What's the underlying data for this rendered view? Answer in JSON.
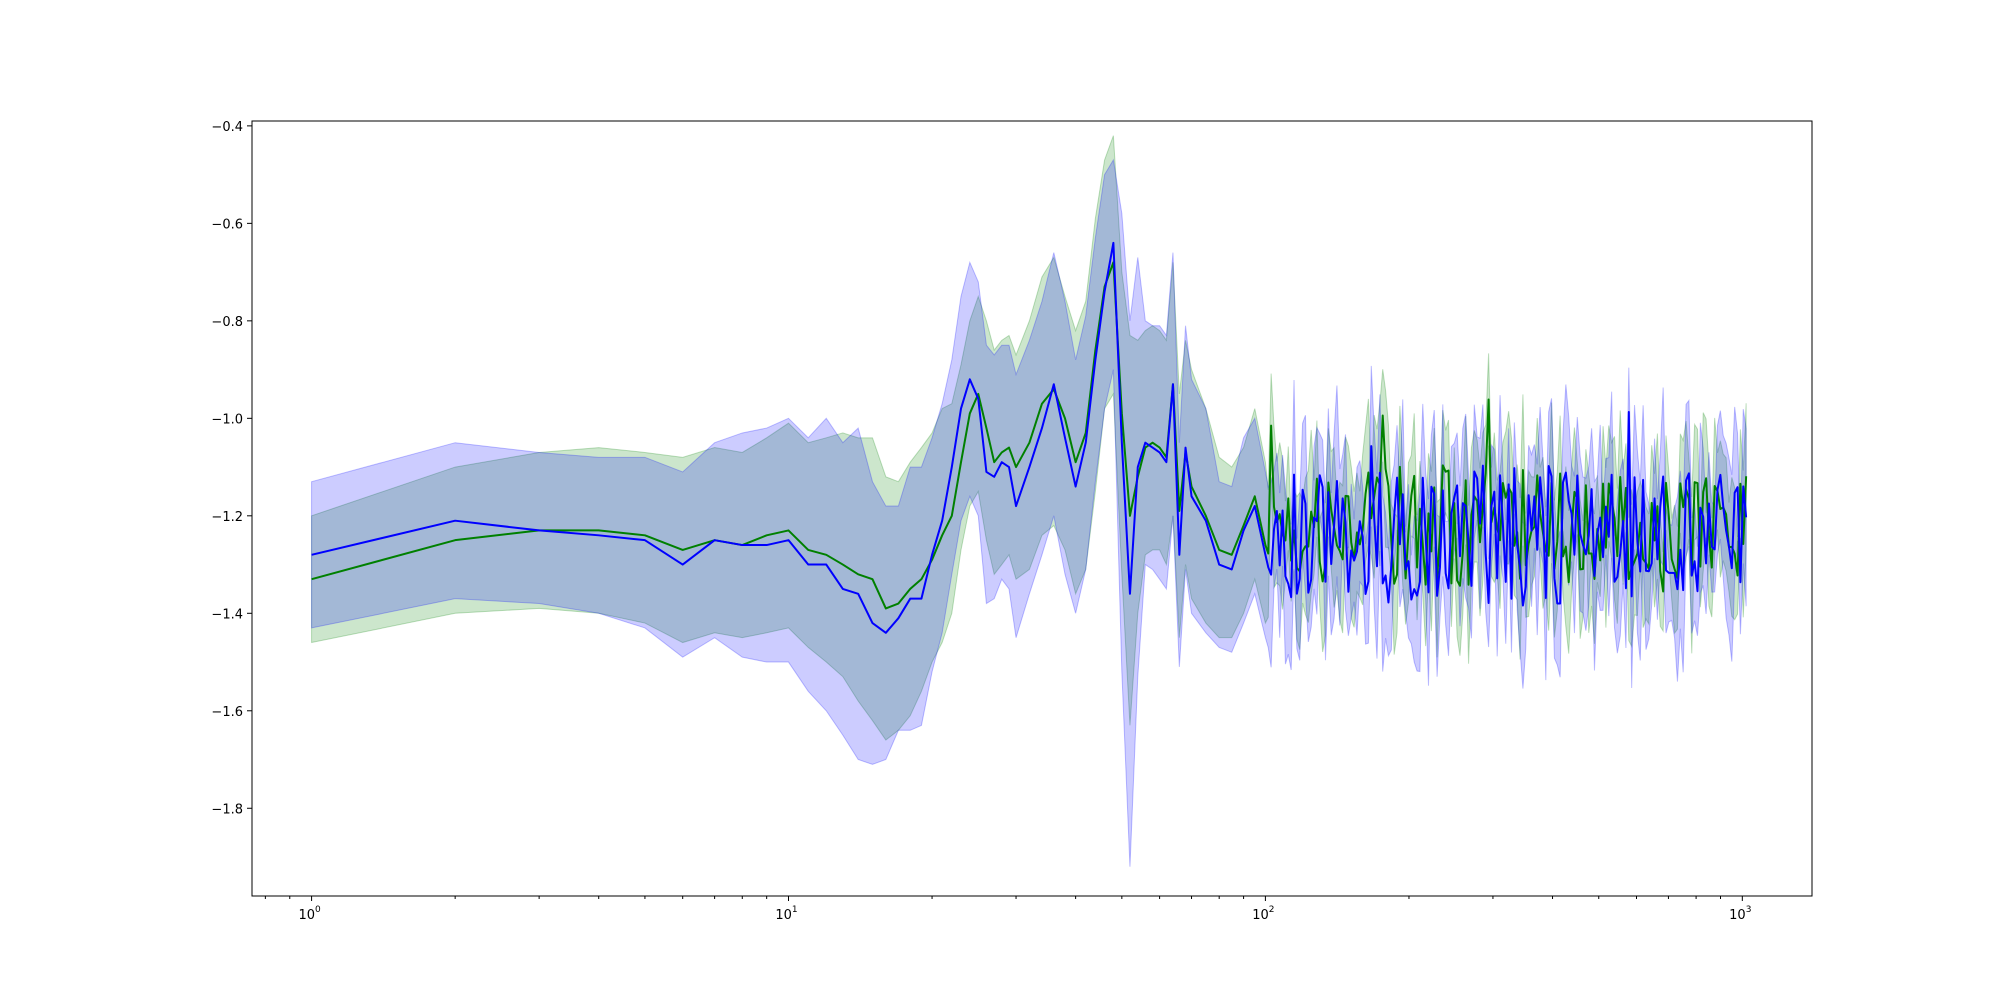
{
  "chart_data": {
    "type": "line",
    "title": "",
    "xlabel": "",
    "ylabel": "",
    "x_scale": "log",
    "xlim": [
      0.75,
      1400
    ],
    "ylim": [
      -1.98,
      -0.39
    ],
    "grid": false,
    "legend": "none",
    "x_ticks": [
      {
        "base": "10",
        "exp": "0",
        "value": 1
      },
      {
        "base": "10",
        "exp": "1",
        "value": 10
      },
      {
        "base": "10",
        "exp": "2",
        "value": 100
      },
      {
        "base": "10",
        "exp": "3",
        "value": 1000
      }
    ],
    "y_ticks": [
      {
        "label": "−0.4",
        "value": -0.4
      },
      {
        "label": "−0.6",
        "value": -0.6
      },
      {
        "label": "−0.8",
        "value": -0.8
      },
      {
        "label": "−1.0",
        "value": -1.0
      },
      {
        "label": "−1.2",
        "value": -1.2
      },
      {
        "label": "−1.4",
        "value": -1.4
      },
      {
        "label": "−1.6",
        "value": -1.6
      },
      {
        "label": "−1.8",
        "value": -1.8
      }
    ],
    "series": [
      {
        "color": "#008000",
        "band_color": "#008000",
        "band_opacity": 0.2,
        "x": [
          1,
          2,
          3,
          4,
          5,
          6,
          7,
          8,
          9,
          10,
          11,
          12,
          13,
          14,
          15,
          16,
          17,
          18,
          19,
          20,
          21,
          22,
          23,
          24,
          25,
          26,
          27,
          28,
          29,
          30,
          32,
          34,
          36,
          38,
          40,
          42,
          44,
          46,
          48,
          50,
          52,
          54,
          56,
          58,
          60,
          62,
          64,
          66,
          68,
          70,
          75,
          80,
          85,
          90,
          95,
          100
        ],
        "mean": [
          -1.33,
          -1.25,
          -1.23,
          -1.23,
          -1.24,
          -1.27,
          -1.25,
          -1.26,
          -1.24,
          -1.23,
          -1.27,
          -1.28,
          -1.3,
          -1.32,
          -1.33,
          -1.39,
          -1.38,
          -1.35,
          -1.33,
          -1.29,
          -1.24,
          -1.2,
          -1.09,
          -0.99,
          -0.95,
          -1.02,
          -1.09,
          -1.07,
          -1.06,
          -1.1,
          -1.05,
          -0.97,
          -0.94,
          -1.0,
          -1.09,
          -1.03,
          -0.86,
          -0.73,
          -0.68,
          -0.99,
          -1.2,
          -1.12,
          -1.06,
          -1.05,
          -1.06,
          -1.08,
          -0.93,
          -1.19,
          -1.07,
          -1.14,
          -1.2,
          -1.27,
          -1.28,
          -1.22,
          -1.16,
          -1.26
        ],
        "lower": [
          -1.46,
          -1.4,
          -1.39,
          -1.4,
          -1.42,
          -1.46,
          -1.44,
          -1.45,
          -1.44,
          -1.43,
          -1.47,
          -1.5,
          -1.53,
          -1.58,
          -1.62,
          -1.66,
          -1.64,
          -1.61,
          -1.56,
          -1.5,
          -1.46,
          -1.4,
          -1.27,
          -1.18,
          -1.15,
          -1.25,
          -1.32,
          -1.3,
          -1.28,
          -1.33,
          -1.31,
          -1.24,
          -1.22,
          -1.27,
          -1.36,
          -1.31,
          -1.15,
          -0.98,
          -0.95,
          -1.32,
          -1.63,
          -1.4,
          -1.28,
          -1.27,
          -1.27,
          -1.3,
          -1.2,
          -1.45,
          -1.3,
          -1.37,
          -1.42,
          -1.45,
          -1.45,
          -1.4,
          -1.33,
          -1.42
        ],
        "upper": [
          -1.2,
          -1.1,
          -1.07,
          -1.06,
          -1.07,
          -1.08,
          -1.06,
          -1.07,
          -1.04,
          -1.01,
          -1.05,
          -1.04,
          -1.03,
          -1.04,
          -1.04,
          -1.12,
          -1.13,
          -1.09,
          -1.06,
          -1.03,
          -0.98,
          -0.97,
          -0.89,
          -0.8,
          -0.75,
          -0.8,
          -0.86,
          -0.84,
          -0.83,
          -0.87,
          -0.8,
          -0.71,
          -0.67,
          -0.75,
          -0.82,
          -0.76,
          -0.59,
          -0.47,
          -0.42,
          -0.7,
          -0.83,
          -0.84,
          -0.82,
          -0.81,
          -0.82,
          -0.84,
          -0.68,
          -0.95,
          -0.84,
          -0.9,
          -0.98,
          -1.08,
          -1.1,
          -1.06,
          -0.98,
          -1.09
        ],
        "noise": {
          "x_start": 100,
          "x_end": 1024,
          "step": 0.006,
          "base": -1.22,
          "amplitude": 0.13,
          "band_halfwidth": 0.12,
          "seed": 7
        }
      },
      {
        "color": "#0000ff",
        "band_color": "#0000ff",
        "band_opacity": 0.2,
        "x": [
          1,
          2,
          3,
          4,
          5,
          6,
          7,
          8,
          9,
          10,
          11,
          12,
          13,
          14,
          15,
          16,
          17,
          18,
          19,
          20,
          21,
          22,
          23,
          24,
          25,
          26,
          27,
          28,
          29,
          30,
          32,
          34,
          36,
          38,
          40,
          42,
          44,
          46,
          48,
          50,
          52,
          54,
          56,
          58,
          60,
          62,
          64,
          66,
          68,
          70,
          75,
          80,
          85,
          90,
          95,
          100
        ],
        "mean": [
          -1.28,
          -1.21,
          -1.23,
          -1.24,
          -1.25,
          -1.3,
          -1.25,
          -1.26,
          -1.26,
          -1.25,
          -1.3,
          -1.3,
          -1.35,
          -1.36,
          -1.42,
          -1.44,
          -1.41,
          -1.37,
          -1.37,
          -1.28,
          -1.21,
          -1.1,
          -0.98,
          -0.92,
          -0.96,
          -1.11,
          -1.12,
          -1.09,
          -1.1,
          -1.18,
          -1.1,
          -1.02,
          -0.93,
          -1.04,
          -1.14,
          -1.05,
          -0.88,
          -0.74,
          -0.64,
          -1.05,
          -1.36,
          -1.1,
          -1.05,
          -1.06,
          -1.07,
          -1.09,
          -0.93,
          -1.28,
          -1.06,
          -1.16,
          -1.21,
          -1.3,
          -1.31,
          -1.23,
          -1.18,
          -1.28
        ],
        "lower": [
          -1.43,
          -1.37,
          -1.38,
          -1.4,
          -1.43,
          -1.49,
          -1.45,
          -1.49,
          -1.5,
          -1.5,
          -1.56,
          -1.6,
          -1.65,
          -1.7,
          -1.71,
          -1.7,
          -1.64,
          -1.64,
          -1.63,
          -1.52,
          -1.44,
          -1.32,
          -1.21,
          -1.16,
          -1.2,
          -1.38,
          -1.37,
          -1.33,
          -1.35,
          -1.45,
          -1.36,
          -1.28,
          -1.2,
          -1.32,
          -1.4,
          -1.31,
          -1.13,
          -0.98,
          -0.9,
          -1.52,
          -1.92,
          -1.53,
          -1.3,
          -1.31,
          -1.33,
          -1.35,
          -1.2,
          -1.51,
          -1.31,
          -1.4,
          -1.44,
          -1.47,
          -1.48,
          -1.42,
          -1.36,
          -1.45
        ],
        "upper": [
          -1.13,
          -1.05,
          -1.07,
          -1.08,
          -1.08,
          -1.11,
          -1.05,
          -1.03,
          -1.02,
          -1.0,
          -1.04,
          -1.0,
          -1.05,
          -1.02,
          -1.13,
          -1.18,
          -1.18,
          -1.1,
          -1.1,
          -1.04,
          -0.97,
          -0.88,
          -0.75,
          -0.68,
          -0.72,
          -0.85,
          -0.87,
          -0.85,
          -0.85,
          -0.91,
          -0.84,
          -0.76,
          -0.66,
          -0.76,
          -0.88,
          -0.79,
          -0.63,
          -0.5,
          -0.47,
          -0.58,
          -0.8,
          -0.67,
          -0.8,
          -0.81,
          -0.81,
          -0.83,
          -0.66,
          -1.05,
          -0.81,
          -0.92,
          -0.98,
          -1.13,
          -1.14,
          -1.04,
          -1.0,
          -1.11
        ],
        "noise": {
          "x_start": 100,
          "x_end": 1024,
          "step": 0.006,
          "base": -1.24,
          "amplitude": 0.15,
          "band_halfwidth": 0.14,
          "seed": 13
        }
      }
    ]
  }
}
